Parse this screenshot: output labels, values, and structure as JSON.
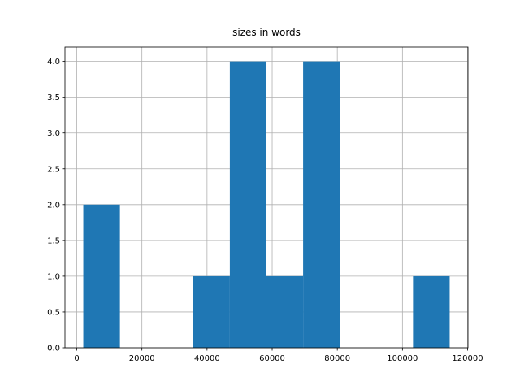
{
  "chart_data": {
    "type": "histogram",
    "title": "sizes in words",
    "bins": [
      2000,
      13250,
      24500,
      35750,
      47000,
      58250,
      69500,
      80750,
      92000,
      103250,
      114500
    ],
    "counts": [
      2,
      0,
      0,
      1,
      4,
      1,
      4,
      0,
      0,
      1
    ],
    "color": "#1f77b4",
    "xlim": [
      -3625,
      120125
    ],
    "xticks": [
      0,
      20000,
      40000,
      60000,
      80000,
      100000,
      120000
    ],
    "ylim": [
      0,
      4.2
    ],
    "yticks": [
      {
        "value": 0,
        "label": "0.0"
      },
      {
        "value": 0.5,
        "label": "0.5"
      },
      {
        "value": 1,
        "label": "1.0"
      },
      {
        "value": 1.5,
        "label": "1.5"
      },
      {
        "value": 2,
        "label": "2.0"
      },
      {
        "value": 2.5,
        "label": "2.5"
      },
      {
        "value": 3,
        "label": "3.0"
      },
      {
        "value": 3.5,
        "label": "3.5"
      },
      {
        "value": 4,
        "label": "4.0"
      }
    ],
    "grid": true
  }
}
